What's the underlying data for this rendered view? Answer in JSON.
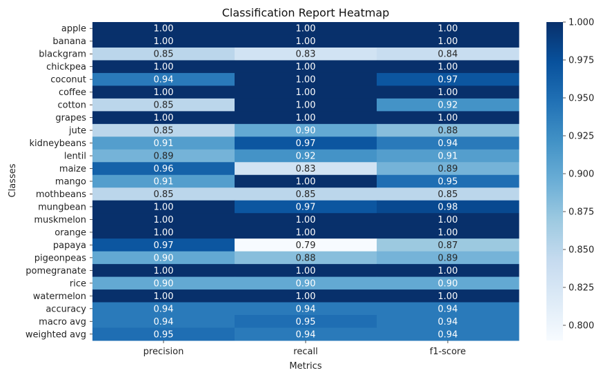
{
  "chart_data": {
    "type": "heatmap",
    "title": "Classification Report Heatmap",
    "xlabel": "Metrics",
    "ylabel": "Classes",
    "columns": [
      "precision",
      "recall",
      "f1-score"
    ],
    "rows": [
      "apple",
      "banana",
      "blackgram",
      "chickpea",
      "coconut",
      "coffee",
      "cotton",
      "grapes",
      "jute",
      "kidneybeans",
      "lentil",
      "maize",
      "mango",
      "mothbeans",
      "mungbean",
      "muskmelon",
      "orange",
      "papaya",
      "pigeonpeas",
      "pomegranate",
      "rice",
      "watermelon",
      "accuracy",
      "macro avg",
      "weighted avg"
    ],
    "values": [
      [
        1.0,
        1.0,
        1.0
      ],
      [
        1.0,
        1.0,
        1.0
      ],
      [
        0.85,
        0.83,
        0.84
      ],
      [
        1.0,
        1.0,
        1.0
      ],
      [
        0.94,
        1.0,
        0.97
      ],
      [
        1.0,
        1.0,
        1.0
      ],
      [
        0.85,
        1.0,
        0.92
      ],
      [
        1.0,
        1.0,
        1.0
      ],
      [
        0.85,
        0.9,
        0.88
      ],
      [
        0.91,
        0.97,
        0.94
      ],
      [
        0.89,
        0.92,
        0.91
      ],
      [
        0.96,
        0.83,
        0.89
      ],
      [
        0.91,
        1.0,
        0.95
      ],
      [
        0.85,
        0.85,
        0.85
      ],
      [
        1.0,
        0.97,
        0.98
      ],
      [
        1.0,
        1.0,
        1.0
      ],
      [
        1.0,
        1.0,
        1.0
      ],
      [
        0.97,
        0.79,
        0.87
      ],
      [
        0.9,
        0.88,
        0.89
      ],
      [
        1.0,
        1.0,
        1.0
      ],
      [
        0.9,
        0.9,
        0.9
      ],
      [
        1.0,
        1.0,
        1.0
      ],
      [
        0.94,
        0.94,
        0.94
      ],
      [
        0.94,
        0.95,
        0.94
      ],
      [
        0.95,
        0.94,
        0.94
      ]
    ],
    "value_format": "0.00",
    "colormap": "Blues",
    "colorbar": {
      "vmin": 0.79,
      "vmax": 1.0,
      "ticks": [
        "0.800",
        "0.825",
        "0.850",
        "0.875",
        "0.900",
        "0.925",
        "0.950",
        "0.975",
        "1.000"
      ]
    },
    "grid": false
  }
}
